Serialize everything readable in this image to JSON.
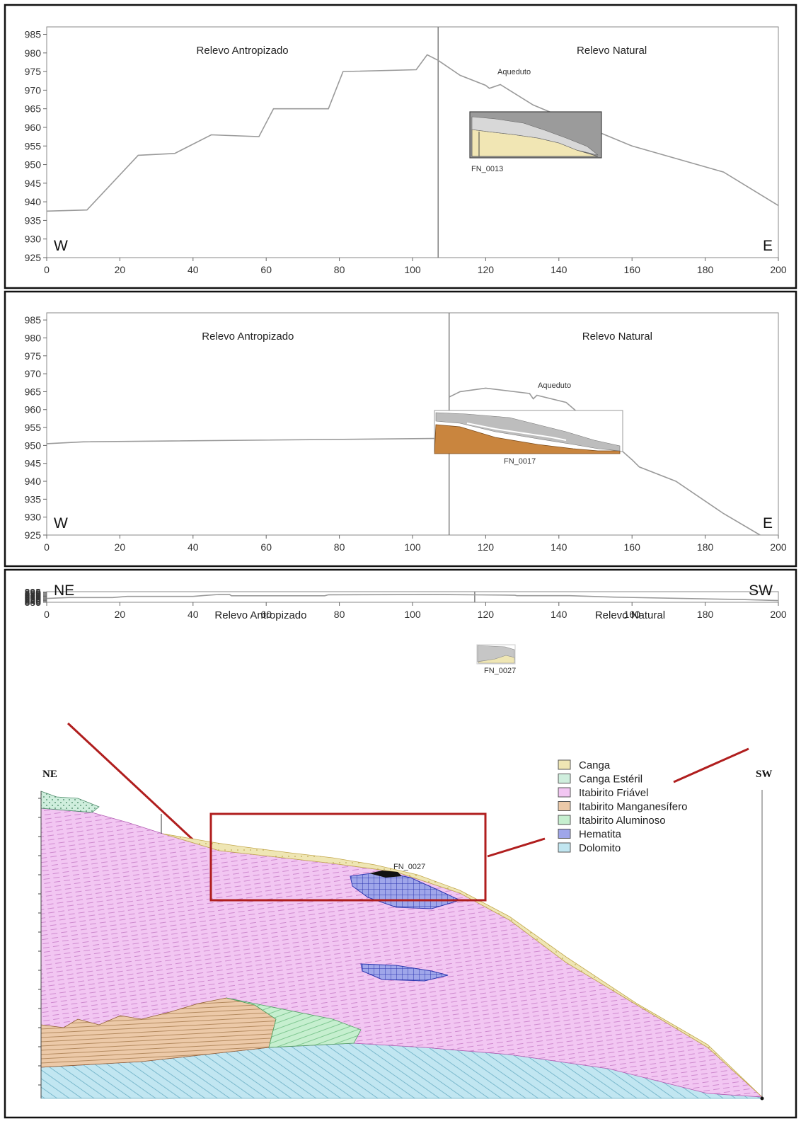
{
  "chart_data": [
    {
      "type": "line",
      "x_ticks": [
        0,
        20,
        40,
        60,
        80,
        100,
        120,
        140,
        160,
        180,
        200
      ],
      "y_ticks": [
        925,
        930,
        935,
        940,
        945,
        950,
        955,
        960,
        965,
        970,
        975,
        980,
        985
      ],
      "xlim": [
        0,
        200
      ],
      "ylim": [
        925,
        987
      ],
      "left_region": "Relevo Antropizado",
      "right_region": "Relevo Natural",
      "left_dir": "W",
      "right_dir": "E",
      "boundary_x": 107,
      "feature_label": "Aqueduto",
      "sample_label": "FN_0013",
      "series": [
        {
          "x": [
            0,
            11,
            25,
            35,
            45,
            58,
            62,
            77,
            81,
            101,
            104,
            107,
            113,
            120,
            121,
            124,
            133,
            160,
            185,
            200
          ],
          "y": [
            937.5,
            937.8,
            952.5,
            953,
            958,
            957.5,
            965,
            965,
            975,
            975.5,
            979.5,
            978,
            974,
            971.3,
            970.5,
            971.5,
            966,
            955,
            948,
            939
          ]
        }
      ]
    },
    {
      "type": "line",
      "x_ticks": [
        0,
        20,
        40,
        60,
        80,
        100,
        120,
        140,
        160,
        180,
        200
      ],
      "y_ticks": [
        925,
        930,
        935,
        940,
        945,
        950,
        955,
        960,
        965,
        970,
        975,
        980,
        985
      ],
      "xlim": [
        0,
        200
      ],
      "ylim": [
        925,
        987
      ],
      "left_region": "Relevo Antropizado",
      "right_region": "Relevo Natural",
      "left_dir": "W",
      "right_dir": "E",
      "boundary_x": 110,
      "feature_label": "Aqueduto",
      "sample_label": "FN_0017",
      "series": [
        {
          "x": [
            0,
            10,
            110
          ],
          "y": [
            950.5,
            951,
            952
          ]
        },
        {
          "x": [
            110,
            113,
            120,
            132,
            133,
            134,
            142,
            150,
            160,
            162,
            172,
            185,
            195
          ],
          "y": [
            963.5,
            965,
            966,
            964.5,
            963,
            964,
            962,
            955,
            946,
            944,
            940,
            931,
            925
          ]
        }
      ]
    },
    {
      "type": "line",
      "x_ticks": [
        0,
        20,
        40,
        60,
        80,
        100,
        120,
        140,
        160,
        180,
        200
      ],
      "y_ticks": [
        835,
        840,
        845,
        850,
        855,
        860,
        865,
        870,
        875,
        880,
        885,
        890,
        895
      ],
      "xlim": [
        0,
        200
      ],
      "ylim": [
        835,
        897
      ],
      "left_region": "Relevo Antropizado",
      "right_region": "Relevo Natural",
      "left_dir": "NE",
      "right_dir": "SW",
      "boundary_x": 117,
      "sample_label": "FN_0027",
      "series": [
        {
          "x": [
            0,
            6,
            18,
            22,
            40,
            43,
            47,
            50,
            50.5,
            76,
            77,
            108,
            117,
            125,
            128,
            128.5,
            143,
            155,
            175,
            190,
            200
          ],
          "y": [
            857.5,
            862.5,
            862.5,
            869.5,
            869.5,
            874.5,
            880.5,
            880,
            873,
            873,
            879,
            880,
            878.5,
            877,
            876,
            873.5,
            873.5,
            865,
            857,
            851,
            845
          ]
        }
      ]
    }
  ],
  "section": {
    "left_label": "NE",
    "right_label": "SW",
    "sample_label": "FN_0027",
    "legend": [
      {
        "label": "Canga",
        "color": "#efe6b4"
      },
      {
        "label": "Canga Estéril",
        "color": "#cfeedd"
      },
      {
        "label": "Itabirito Friável",
        "color": "#f2c6f2"
      },
      {
        "label": "Itabirito Manganesífero",
        "color": "#ecc9a8"
      },
      {
        "label": "Itabirito Aluminoso",
        "color": "#c6efcf"
      },
      {
        "label": "Hematita",
        "color": "#9fa6ea"
      },
      {
        "label": "Dolomito",
        "color": "#c1e6f1"
      }
    ]
  }
}
